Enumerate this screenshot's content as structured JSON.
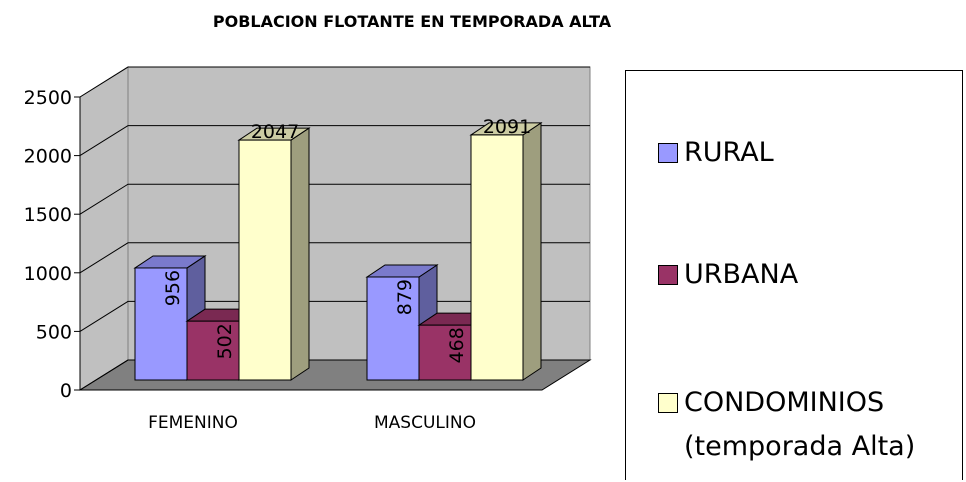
{
  "chart_data": {
    "type": "bar3d",
    "title": "POBLACION FLOTANTE EN TEMPORADA ALTA",
    "categories": [
      "FEMENINO",
      "MASCULINO"
    ],
    "series": [
      {
        "name": "RURAL",
        "color": "#9999ff",
        "values": [
          956,
          879
        ]
      },
      {
        "name": "URBANA",
        "color": "#993366",
        "values": [
          502,
          468
        ]
      },
      {
        "name": "CONDOMINIOS (temporada Alta)",
        "color": "#ffffcc",
        "values": [
          2047,
          2091
        ]
      }
    ],
    "ylim": [
      0,
      2500
    ],
    "yticks": [
      0,
      500,
      1000,
      1500,
      2000,
      2500
    ],
    "grid": true,
    "legend": "right"
  }
}
